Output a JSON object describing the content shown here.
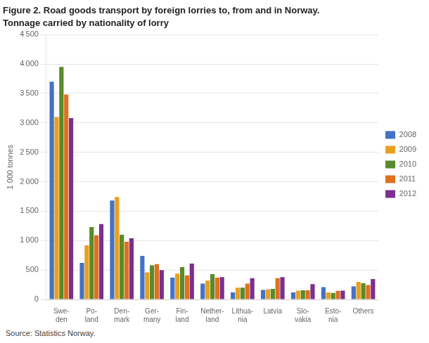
{
  "chart_data": {
    "type": "bar",
    "title": "Figure 2. Road goods transport by foreign lorries to, from and in Norway.",
    "subtitle": "Tonnage carried by nationality of lorry",
    "ylabel": "1 000 tonnes",
    "annotations": [
      "Source: Statistics Norway."
    ],
    "categories": [
      "Swe-\nden",
      "Po-\nland",
      "Den-\nmark",
      "Ger-\nmany",
      "Fin-\nland",
      "Nether-\nland",
      "Lithua-\nnia",
      "Latvia",
      "Slo-\nvakia",
      "Esto-\nnia",
      "Others"
    ],
    "series": [
      {
        "name": "2008",
        "color": "#4472c4",
        "values": [
          3700,
          620,
          1680,
          740,
          370,
          270,
          120,
          160,
          120,
          210,
          220
        ]
      },
      {
        "name": "2009",
        "color": "#e8a020",
        "values": [
          3100,
          920,
          1740,
          460,
          440,
          320,
          200,
          170,
          150,
          120,
          300
        ]
      },
      {
        "name": "2010",
        "color": "#5a8a2a",
        "values": [
          3950,
          1230,
          1100,
          580,
          550,
          430,
          200,
          180,
          155,
          110,
          275
        ]
      },
      {
        "name": "2011",
        "color": "#e07020",
        "values": [
          3480,
          1090,
          980,
          600,
          410,
          370,
          270,
          360,
          155,
          145,
          245
        ]
      },
      {
        "name": "2012",
        "color": "#7b2f8e",
        "values": [
          3080,
          1280,
          1040,
          500,
          610,
          380,
          360,
          380,
          260,
          150,
          345
        ]
      }
    ],
    "ylim": [
      0,
      4500
    ],
    "yticks": [
      0,
      500,
      {
        "value": 1000,
        "label": "1 000"
      },
      {
        "value": 1500,
        "label": "1 500"
      },
      {
        "value": 2000,
        "label": "2 000"
      },
      {
        "value": 2500,
        "label": "2 500"
      },
      {
        "value": 3000,
        "label": "3 000"
      },
      {
        "value": 3500,
        "label": "3 500"
      },
      {
        "value": 4000,
        "label": "4 000"
      },
      {
        "value": 4500,
        "label": "4 500"
      }
    ],
    "grid": true,
    "legend": "right"
  }
}
